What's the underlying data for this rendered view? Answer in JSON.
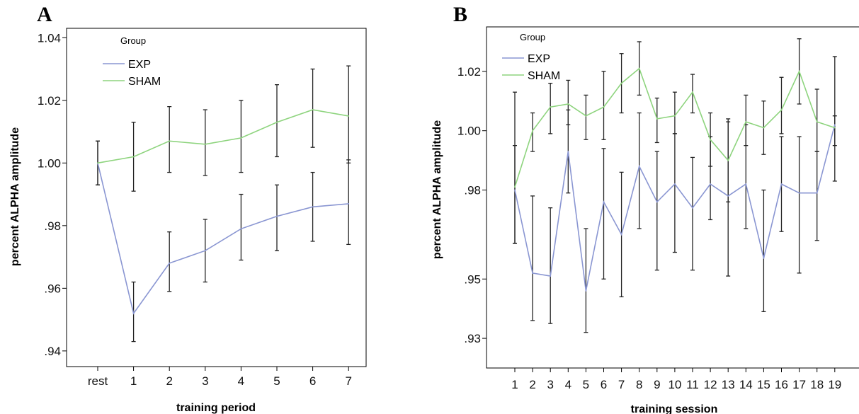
{
  "chart_data": [
    {
      "panel_label": "A",
      "type": "line",
      "xlabel": "training period",
      "ylabel": "percent ALPHA amplitude",
      "categories": [
        "rest",
        "1",
        "2",
        "3",
        "4",
        "5",
        "6",
        "7"
      ],
      "ylim": [
        0.935,
        1.043
      ],
      "yticks": [
        0.94,
        0.96,
        0.98,
        1.0,
        1.02,
        1.04
      ],
      "ytick_labels": [
        ".94",
        ".96",
        ".98",
        "1.00",
        "1.02",
        "1.04"
      ],
      "legend": {
        "title": "Group",
        "placement": "top-left"
      },
      "series": [
        {
          "name": "EXP",
          "color": "#8a96d2",
          "values": [
            1.0,
            0.952,
            0.968,
            0.972,
            0.979,
            0.983,
            0.986,
            0.987
          ],
          "error_low": [
            0.993,
            0.943,
            0.959,
            0.962,
            0.969,
            0.972,
            0.975,
            0.974
          ],
          "error_high": [
            1.007,
            0.962,
            0.978,
            0.982,
            0.99,
            0.993,
            0.997,
            1.001
          ]
        },
        {
          "name": "SHAM",
          "color": "#8ed47e",
          "values": [
            1.0,
            1.002,
            1.007,
            1.006,
            1.008,
            1.013,
            1.017,
            1.015
          ],
          "error_low": [
            0.993,
            0.991,
            0.997,
            0.996,
            0.997,
            1.002,
            1.005,
            1.0
          ],
          "error_high": [
            1.007,
            1.013,
            1.018,
            1.017,
            1.02,
            1.025,
            1.03,
            1.031
          ]
        }
      ]
    },
    {
      "panel_label": "B",
      "type": "line",
      "xlabel": "training session",
      "ylabel": "percent ALPHA amplitude",
      "categories": [
        "1",
        "2",
        "3",
        "4",
        "5",
        "6",
        "7",
        "8",
        "9",
        "10",
        "11",
        "12",
        "13",
        "14",
        "15",
        "16",
        "17",
        "18",
        "19"
      ],
      "ylim": [
        0.92,
        1.035
      ],
      "yticks": [
        0.93,
        0.95,
        0.98,
        1.0,
        1.02
      ],
      "ytick_labels": [
        ".93",
        ".95",
        ".98",
        "1.00",
        "1.02"
      ],
      "legend": {
        "title": "Group",
        "placement": "top-left"
      },
      "series": [
        {
          "name": "EXP",
          "color": "#8a96d2",
          "values": [
            0.98,
            0.952,
            0.951,
            0.993,
            0.946,
            0.976,
            0.965,
            0.988,
            0.976,
            0.982,
            0.974,
            0.982,
            0.978,
            0.982,
            0.957,
            0.982,
            0.979,
            0.979,
            1.002
          ],
          "error_low": [
            0.962,
            0.936,
            0.935,
            0.979,
            0.932,
            0.95,
            0.944,
            0.967,
            0.953,
            0.959,
            0.953,
            0.97,
            0.951,
            0.967,
            0.939,
            0.966,
            0.952,
            0.963,
            0.983
          ],
          "error_high": [
            0.995,
            0.978,
            0.974,
            1.007,
            0.967,
            0.994,
            0.986,
            1.006,
            0.993,
            0.999,
            0.991,
            0.998,
            1.004,
            1.002,
            0.98,
            0.998,
            0.998,
            0.993,
            1.005
          ]
        },
        {
          "name": "SHAM",
          "color": "#8ed47e",
          "values": [
            0.981,
            1.0,
            1.008,
            1.009,
            1.005,
            1.008,
            1.016,
            1.021,
            1.004,
            1.005,
            1.013,
            0.997,
            0.99,
            1.003,
            1.001,
            1.007,
            1.02,
            1.003,
            1.001
          ],
          "error_low": [
            0.962,
            0.993,
            0.999,
            1.002,
            0.997,
            0.997,
            1.006,
            1.012,
            0.996,
            0.999,
            1.006,
            0.988,
            0.976,
            0.995,
            0.992,
            0.999,
            1.009,
            0.993,
            0.995
          ],
          "error_high": [
            1.013,
            1.006,
            1.016,
            1.017,
            1.012,
            1.02,
            1.026,
            1.03,
            1.011,
            1.013,
            1.019,
            1.006,
            1.003,
            1.012,
            1.01,
            1.018,
            1.031,
            1.014,
            1.025
          ]
        }
      ]
    }
  ]
}
